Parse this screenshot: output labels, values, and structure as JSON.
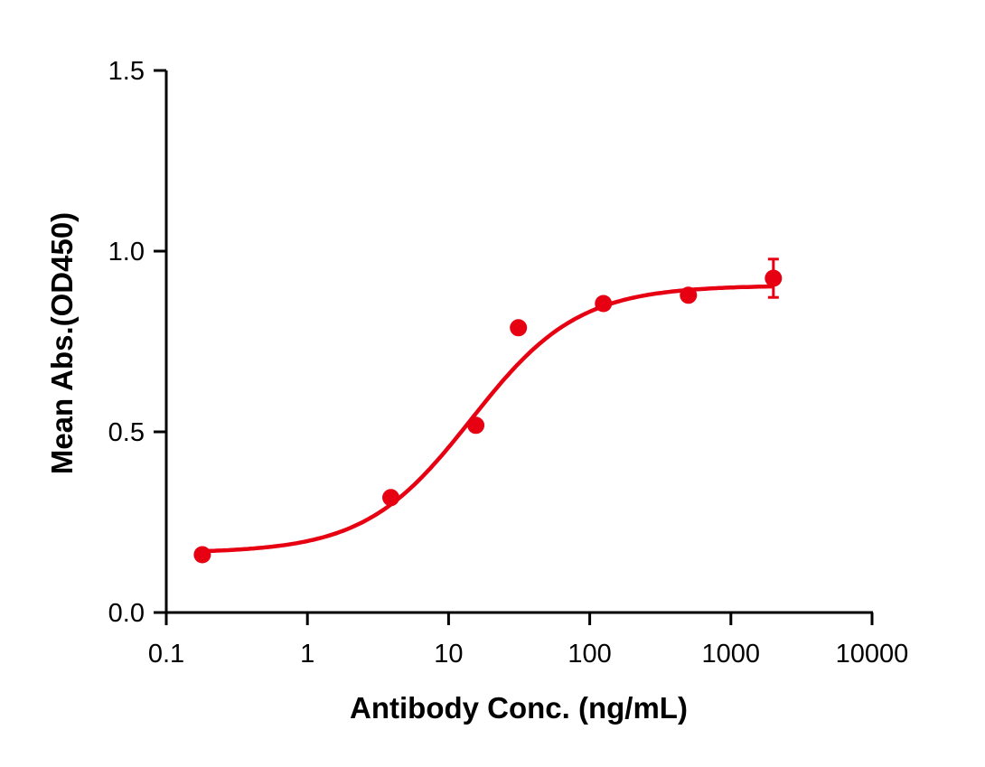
{
  "chart_data": {
    "type": "scatter",
    "title": "",
    "xlabel": "Antibody Conc. (ng/mL)",
    "ylabel": "Mean Abs.(OD450)",
    "xscale": "log",
    "xlim": [
      0.1,
      10000
    ],
    "ylim": [
      0.0,
      1.5
    ],
    "x_ticks": [
      "0.1",
      "1",
      "10",
      "100",
      "1000",
      "10000"
    ],
    "y_ticks": [
      "0.0",
      "0.5",
      "1.0",
      "1.5"
    ],
    "grid": false,
    "legend": null,
    "color": "#e60012",
    "series": [
      {
        "name": "Mean Abs.",
        "x": [
          0.18,
          3.9,
          15.6,
          31.25,
          125,
          500,
          2000
        ],
        "y": [
          0.16,
          0.318,
          0.518,
          0.788,
          0.855,
          0.878,
          0.925
        ],
        "error": [
          0,
          0,
          0,
          0,
          0,
          0,
          0.053
        ]
      }
    ],
    "fit": {
      "type": "4PL sigmoidal",
      "bottom": 0.165,
      "top": 0.905,
      "ec50": 14.5,
      "hill": 1.15
    }
  }
}
